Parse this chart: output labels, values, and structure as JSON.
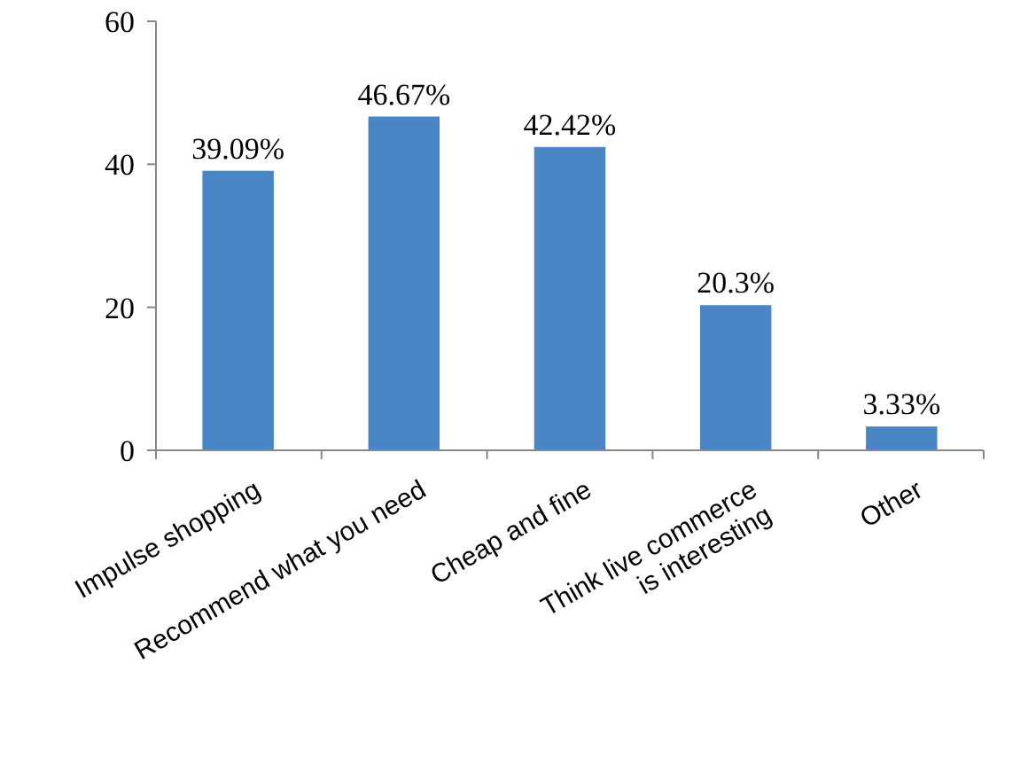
{
  "chart_data": {
    "type": "bar",
    "categories": [
      "Impulse shopping",
      "Recommend what you need",
      "Cheap and fine",
      "Think live commerce is interesting",
      "Other"
    ],
    "values": [
      39.09,
      46.67,
      42.42,
      20.3,
      3.33
    ],
    "value_labels": [
      "39.09%",
      "46.67%",
      "42.42%",
      "20.3%",
      "3.33%"
    ],
    "color": "#4a86c5",
    "ylim": [
      0,
      60
    ],
    "yticks": [
      0,
      20,
      40,
      60
    ],
    "grid": false
  }
}
